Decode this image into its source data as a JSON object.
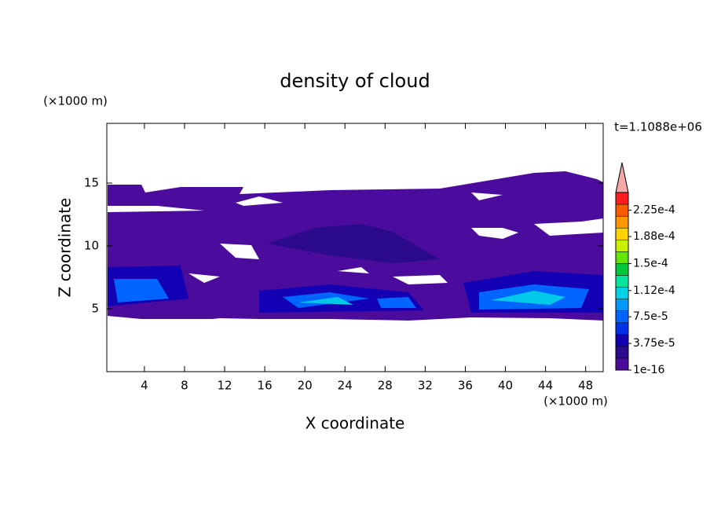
{
  "chart_data": {
    "type": "contour",
    "title": "density of cloud",
    "x_label": "X coordinate",
    "y_label": "Z coordinate",
    "x_unit": "(×1000 m)",
    "y_unit": "(×1000 m)",
    "time_label": "t=1.1088e+06",
    "xlim": [
      0.25,
      49.75
    ],
    "ylim": [
      0,
      19.75
    ],
    "xticks": [
      4,
      8,
      12,
      16,
      20,
      24,
      28,
      32,
      36,
      40,
      44,
      48
    ],
    "yticks": [
      5,
      10,
      15
    ],
    "colorbar": {
      "clim": [
        0,
        0.00025
      ],
      "ticks": [
        {
          "value": 1e-16,
          "label": "1e-16"
        },
        {
          "value": 3.75e-05,
          "label": "3.75e-5"
        },
        {
          "value": 7.5e-05,
          "label": "7.5e-5"
        },
        {
          "value": 0.000112,
          "label": "1.12e-4"
        },
        {
          "value": 0.00015,
          "label": "1.5e-4"
        },
        {
          "value": 0.000188,
          "label": "1.88e-4"
        },
        {
          "value": 0.000225,
          "label": "2.25e-4"
        }
      ],
      "colors": [
        "#4b0c9e",
        "#2c0a8c",
        "#1400b4",
        "#0030e6",
        "#0064ff",
        "#0098ff",
        "#00d2e6",
        "#00e6a0",
        "#00c83c",
        "#64e600",
        "#c8f000",
        "#ffd200",
        "#ff9600",
        "#ff5a00",
        "#ff1e1e"
      ],
      "extend_color": "#f4a8a8"
    }
  }
}
